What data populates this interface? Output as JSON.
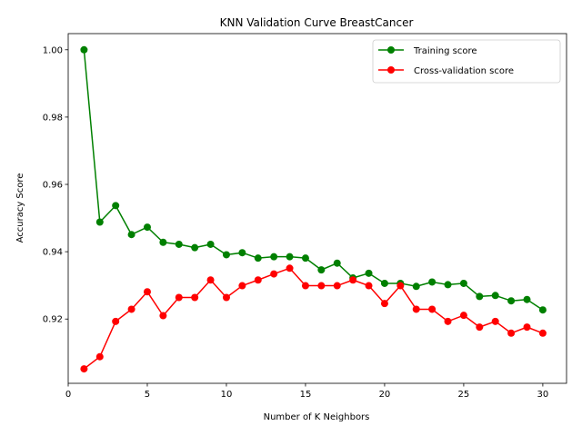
{
  "chart_data": {
    "type": "line",
    "title": "KNN Validation Curve BreastCancer",
    "xlabel": "Number of K Neighbors",
    "ylabel": "Accuracy Score",
    "xlim": [
      0,
      31.5
    ],
    "ylim": [
      0.9009,
      1.0048
    ],
    "xticks": [
      0,
      5,
      10,
      15,
      20,
      25,
      30
    ],
    "yticks": [
      0.92,
      0.94,
      0.96,
      0.98,
      1.0
    ],
    "ytick_labels": [
      "0.92",
      "0.94",
      "0.96",
      "0.98",
      "1.00"
    ],
    "grid": false,
    "legend_position": "top-right",
    "x": [
      1,
      2,
      3,
      4,
      5,
      6,
      7,
      8,
      9,
      10,
      11,
      12,
      13,
      14,
      15,
      16,
      17,
      18,
      19,
      20,
      21,
      22,
      23,
      24,
      25,
      26,
      27,
      28,
      29,
      30
    ],
    "series": [
      {
        "name": "Training score",
        "color": "#008000",
        "values": [
          1.0,
          0.9488,
          0.9537,
          0.9451,
          0.9473,
          0.9428,
          0.9422,
          0.9412,
          0.9422,
          0.9391,
          0.9397,
          0.9381,
          0.9385,
          0.9385,
          0.9381,
          0.9346,
          0.9366,
          0.9322,
          0.9336,
          0.9306,
          0.9306,
          0.9297,
          0.931,
          0.9302,
          0.9306,
          0.9267,
          0.927,
          0.9254,
          0.9258,
          0.9227
        ]
      },
      {
        "name": "Cross-validation score",
        "color": "#ff0000",
        "values": [
          0.9052,
          0.9088,
          0.9193,
          0.9229,
          0.9281,
          0.921,
          0.9264,
          0.9264,
          0.9316,
          0.9264,
          0.9299,
          0.9316,
          0.9334,
          0.9351,
          0.9299,
          0.9299,
          0.9299,
          0.9316,
          0.9299,
          0.9246,
          0.9299,
          0.9229,
          0.9229,
          0.9193,
          0.9211,
          0.9176,
          0.9193,
          0.9158,
          0.9176,
          0.9158
        ]
      }
    ]
  }
}
